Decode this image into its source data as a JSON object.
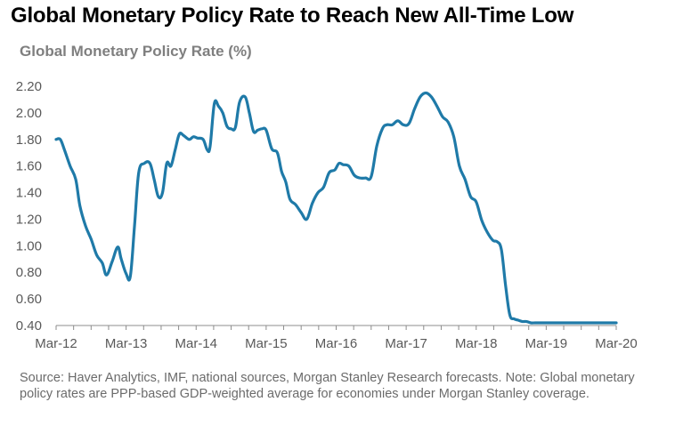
{
  "title": "Global Monetary Policy Rate to Reach New All-Time Low",
  "source_note": "Source: Haver Analytics, IMF, national sources, Morgan Stanley Research forecasts. Note: Global monetary policy rates are PPP-based GDP-weighted average for economies under Morgan Stanley coverage.",
  "chart_data": {
    "type": "line",
    "title": "Global Monetary Policy Rate (%)",
    "xlabel": "",
    "ylabel": "",
    "ylim": [
      0.4,
      2.2
    ],
    "yticks": [
      "2.20",
      "2.00",
      "1.80",
      "1.60",
      "1.40",
      "1.20",
      "1.00",
      "0.80",
      "0.60",
      "0.40"
    ],
    "xticks": [
      "Mar-12",
      "Mar-13",
      "Mar-14",
      "Mar-15",
      "Mar-16",
      "Mar-17",
      "Mar-18",
      "Mar-19",
      "Mar-20"
    ],
    "line_color": "#1f7aa8",
    "series": [
      {
        "name": "Global Monetary Policy Rate",
        "x": [
          0,
          0.06,
          0.12,
          0.2,
          0.28,
          0.34,
          0.42,
          0.5,
          0.58,
          0.66,
          0.72,
          0.8,
          0.88,
          0.93,
          1.0,
          1.06,
          1.12,
          1.18,
          1.26,
          1.34,
          1.4,
          1.46,
          1.52,
          1.58,
          1.64,
          1.7,
          1.76,
          1.82,
          1.9,
          1.96,
          2.02,
          2.1,
          2.16,
          2.2,
          2.26,
          2.32,
          2.38,
          2.44,
          2.5,
          2.56,
          2.62,
          2.7,
          2.76,
          2.82,
          2.88,
          2.94,
          3.0,
          3.08,
          3.16,
          3.22,
          3.28,
          3.34,
          3.42,
          3.5,
          3.58,
          3.66,
          3.74,
          3.82,
          3.9,
          3.98,
          4.04,
          4.1,
          4.18,
          4.26,
          4.34,
          4.42,
          4.5,
          4.58,
          4.66,
          4.72,
          4.8,
          4.88,
          4.96,
          5.04,
          5.12,
          5.2,
          5.28,
          5.36,
          5.44,
          5.52,
          5.6,
          5.68,
          5.76,
          5.84,
          5.92,
          6.0,
          6.08,
          6.16,
          6.24,
          6.3,
          6.36,
          6.42,
          6.48,
          6.54,
          6.6,
          6.66,
          6.72,
          6.78,
          6.84,
          6.9,
          6.96,
          7.04,
          7.12,
          7.2,
          7.28,
          7.34,
          7.42,
          7.5,
          7.58,
          7.66,
          7.72,
          7.78,
          7.84,
          7.9,
          7.96,
          8.0
        ],
        "values": [
          1.8,
          1.8,
          1.72,
          1.6,
          1.5,
          1.3,
          1.15,
          1.05,
          0.93,
          0.87,
          0.78,
          0.88,
          0.99,
          0.9,
          0.79,
          0.77,
          1.15,
          1.55,
          1.62,
          1.62,
          1.5,
          1.37,
          1.4,
          1.62,
          1.6,
          1.72,
          1.84,
          1.83,
          1.8,
          1.82,
          1.81,
          1.8,
          1.72,
          1.75,
          2.07,
          2.05,
          2.0,
          1.9,
          1.88,
          1.89,
          2.08,
          2.12,
          2.0,
          1.86,
          1.87,
          1.88,
          1.87,
          1.73,
          1.7,
          1.56,
          1.48,
          1.35,
          1.31,
          1.25,
          1.2,
          1.32,
          1.4,
          1.44,
          1.55,
          1.57,
          1.62,
          1.61,
          1.6,
          1.53,
          1.51,
          1.51,
          1.52,
          1.75,
          1.88,
          1.91,
          1.91,
          1.94,
          1.91,
          1.92,
          2.03,
          2.12,
          2.15,
          2.12,
          2.05,
          1.97,
          1.93,
          1.82,
          1.6,
          1.5,
          1.37,
          1.33,
          1.19,
          1.1,
          1.04,
          1.03,
          0.97,
          0.7,
          0.48,
          0.45,
          0.44,
          0.43,
          0.43,
          0.42,
          0.42,
          0.42,
          0.42,
          0.42,
          0.42,
          0.42,
          0.42,
          0.42,
          0.42,
          0.42,
          0.42,
          0.42,
          0.42,
          0.42,
          0.42,
          0.42,
          0.42,
          0.42
        ]
      }
    ]
  }
}
